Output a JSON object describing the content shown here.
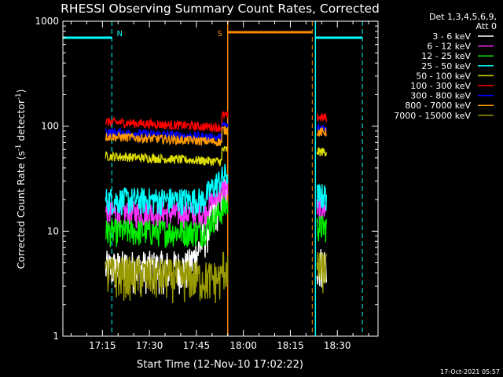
{
  "chart_data": {
    "type": "line",
    "title": "RHESSI Observing Summary Count Rates, Corrected",
    "xlabel": "Start Time (12-Nov-10 17:02:22)",
    "ylabel_main": "Corrected Count Rate (s",
    "ylabel_sup1": "-1",
    "ylabel_mid": " detector",
    "ylabel_sup2": "-1",
    "ylabel_end": ")",
    "footer": "17-Oct-2021 05:57",
    "yscale": "log",
    "ylim": [
      1,
      1000
    ],
    "xlim": [
      "17:02:22",
      "18:43:00"
    ],
    "xticks": [
      "17:15",
      "17:30",
      "17:45",
      "18:00",
      "18:15",
      "18:30"
    ],
    "yticks": [
      "1",
      "10",
      "100",
      "1000"
    ],
    "legend_header": [
      "Det 1,3,4,5,6,9,",
      "Att 0"
    ],
    "legend_placement": "right",
    "series": [
      {
        "name": "3 - 6 keV",
        "color": "#ffffff",
        "level": 4.5
      },
      {
        "name": "6 - 12 keV",
        "color": "#ff33ff",
        "level": 15
      },
      {
        "name": "12 - 25 keV",
        "color": "#00ee00",
        "level": 10
      },
      {
        "name": "25 - 50 keV",
        "color": "#00ffff",
        "level": 20
      },
      {
        "name": "50 - 100 keV",
        "color": "#dddd00",
        "level": 52
      },
      {
        "name": "100 - 300 keV",
        "color": "#ff0000",
        "level": 110
      },
      {
        "name": "300 - 800 keV",
        "color": "#0000ff",
        "level": 88
      },
      {
        "name": "800 - 7000 keV",
        "color": "#ff9900",
        "level": 80
      },
      {
        "name": "7000 - 15000 keV",
        "color": "#999900",
        "level": 4
      }
    ],
    "intervals": [
      {
        "label": "N",
        "type": "night",
        "color": "#00ffff",
        "start": "17:02:22",
        "end": "17:18:00"
      },
      {
        "label": "S",
        "type": "saa",
        "color": "#ff8800",
        "start": "17:55:00",
        "end": "18:22:00"
      },
      {
        "label": "",
        "type": "night",
        "color": "#00ffff",
        "start": "18:23:00",
        "end": "18:38:00"
      }
    ]
  }
}
